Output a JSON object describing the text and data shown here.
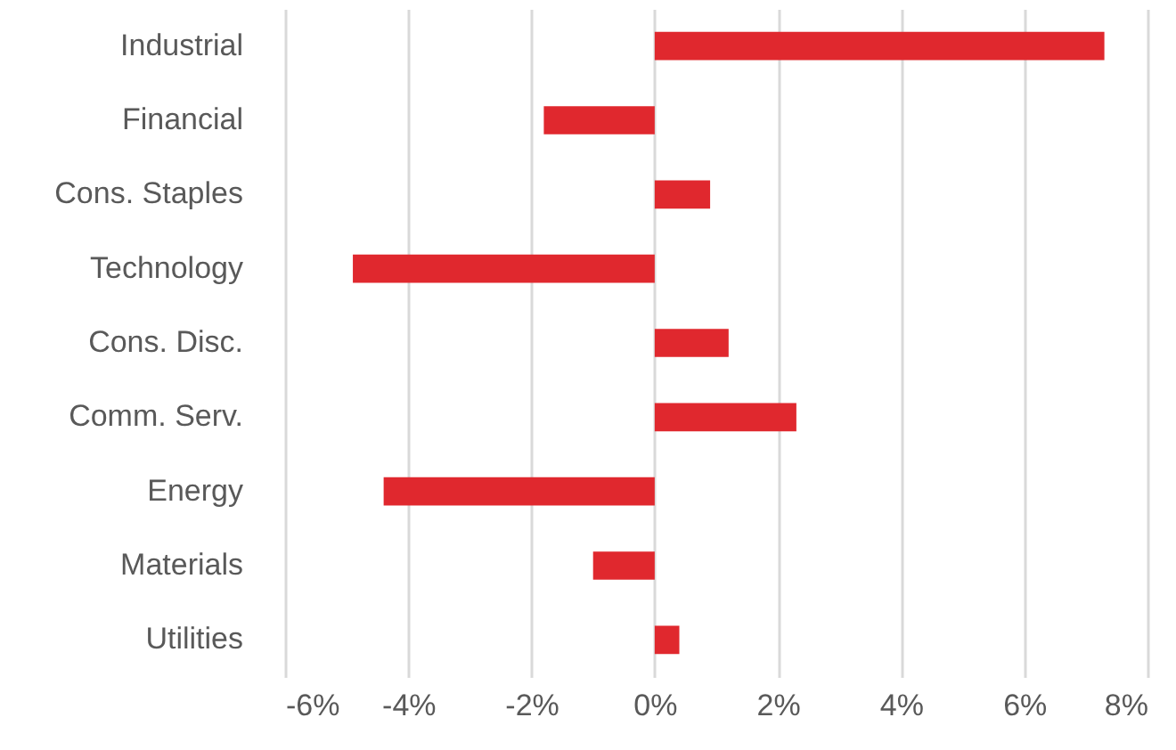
{
  "chart_data": {
    "type": "bar",
    "orientation": "horizontal",
    "categories": [
      "Industrial",
      "Financial",
      "Cons. Staples",
      "Technology",
      "Cons. Disc.",
      "Comm. Serv.",
      "Energy",
      "Materials",
      "Utilities"
    ],
    "values": [
      7.3,
      -1.8,
      0.9,
      -4.9,
      1.2,
      2.3,
      -4.4,
      -1.0,
      0.4
    ],
    "color": "#e0282e",
    "xlim": [
      -6,
      8
    ],
    "xticks": [
      {
        "value": -6,
        "label": "-6%"
      },
      {
        "value": -4,
        "label": "-4%"
      },
      {
        "value": -2,
        "label": "-2%"
      },
      {
        "value": 0,
        "label": "0%"
      },
      {
        "value": 2,
        "label": "2%"
      },
      {
        "value": 4,
        "label": "4%"
      },
      {
        "value": 6,
        "label": "6%"
      },
      {
        "value": 8,
        "label": "8%"
      }
    ],
    "grid": "x"
  }
}
